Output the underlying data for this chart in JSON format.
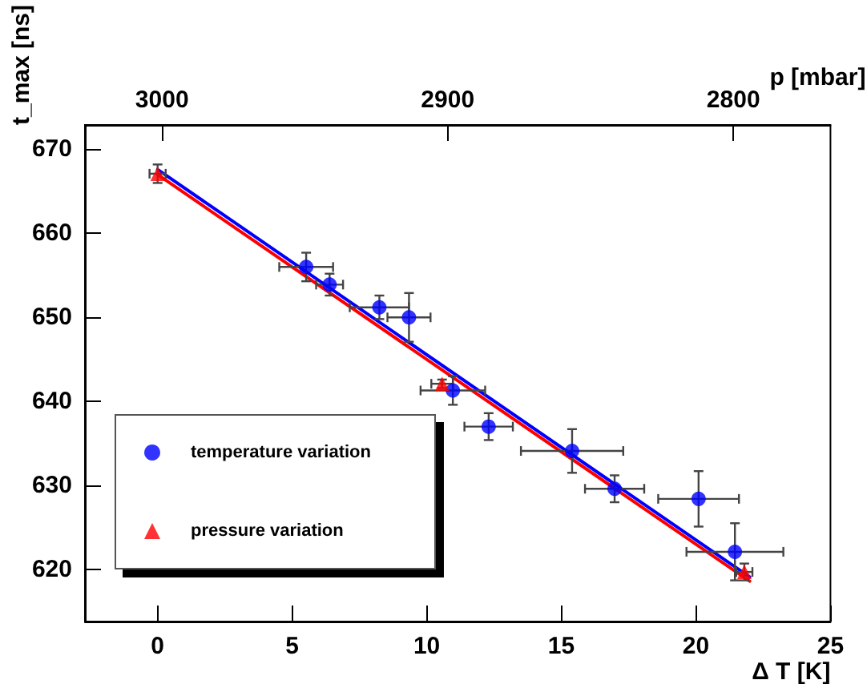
{
  "chart_data": {
    "type": "scatter",
    "xlabel": "Δ T [K]",
    "ylabel": "t_max [ns]",
    "x2label": "p [mbar]",
    "xlim": [
      -2.7,
      25
    ],
    "xticks": [
      0,
      5,
      10,
      15,
      20,
      25
    ],
    "x2lim": [
      3027,
      2766
    ],
    "x2ticks": [
      3000,
      2900,
      2800
    ],
    "ylim": [
      613.8,
      672.9
    ],
    "yticks": [
      620,
      630,
      640,
      650,
      660,
      670
    ],
    "legend": "bottom left",
    "grid": false,
    "series": [
      {
        "name": "temperature variation",
        "type": "scatter",
        "marker": "circle",
        "color": "#0000ff",
        "x": [
          5.52,
          6.39,
          8.24,
          9.34,
          10.97,
          12.3,
          15.4,
          16.98,
          20.1,
          21.45
        ],
        "values": [
          656.0,
          653.9,
          651.2,
          650.0,
          641.3,
          637.0,
          634.1,
          629.6,
          628.4,
          622.1
        ],
        "errors": [
          1.7,
          1.3,
          1.4,
          2.9,
          1.7,
          1.6,
          2.6,
          1.6,
          3.3,
          3.4
        ],
        "xerrors": [
          1.0,
          0.5,
          1.1,
          0.8,
          1.2,
          0.9,
          1.9,
          1.1,
          1.5,
          1.8
        ]
      },
      {
        "name": "pressure variation",
        "type": "scatter",
        "marker": "triangle",
        "color": "#ff0000",
        "x": [
          0,
          10.57,
          21.8
        ],
        "values": [
          667.1,
          642.1,
          619.7
        ],
        "errors": [
          1.1,
          0.5,
          1.0
        ],
        "xerrors": [
          0.3,
          0.4,
          0.3
        ]
      },
      {
        "type": "line",
        "marker": "none",
        "color": "#0000ff",
        "x": [
          0,
          22
        ],
        "values": [
          667.6,
          619.1
        ]
      },
      {
        "type": "line",
        "marker": "none",
        "color": "#ff0000",
        "x": [
          0,
          22
        ],
        "values": [
          667.0,
          618.6
        ]
      }
    ]
  }
}
